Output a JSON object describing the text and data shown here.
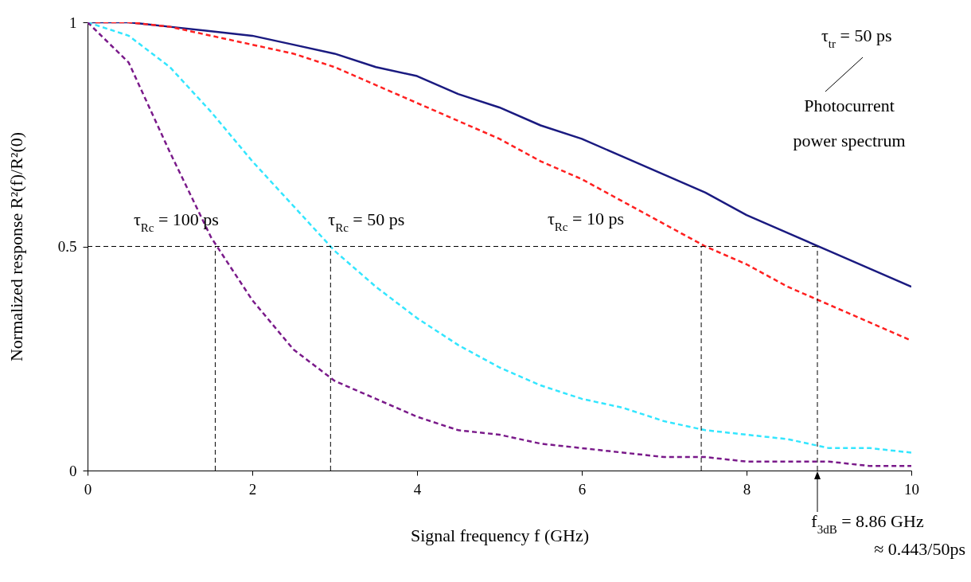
{
  "chart_data": {
    "type": "line",
    "xlabel": "Signal frequency f (GHz)",
    "ylabel": "Normalized response R²(f)/R²(0)",
    "x": [
      0,
      0.5,
      1,
      1.5,
      2,
      2.5,
      3,
      3.5,
      4,
      4.5,
      5,
      5.5,
      6,
      6.5,
      7,
      7.5,
      8,
      8.5,
      9,
      9.5,
      10
    ],
    "series": [
      {
        "color": "#1a1a80",
        "line_style": "solid",
        "values": [
          1,
          1,
          0.99,
          0.98,
          0.97,
          0.95,
          0.93,
          0.9,
          0.88,
          0.84,
          0.81,
          0.77,
          0.74,
          0.7,
          0.66,
          0.62,
          0.57,
          0.53,
          0.49,
          0.45,
          0.41
        ]
      },
      {
        "color": "#ff2020",
        "line_style": "dashed",
        "values": [
          1,
          1,
          0.99,
          0.97,
          0.95,
          0.93,
          0.9,
          0.86,
          0.82,
          0.78,
          0.74,
          0.69,
          0.65,
          0.6,
          0.55,
          0.5,
          0.46,
          0.41,
          0.37,
          0.33,
          0.29
        ]
      },
      {
        "color": "#33e6ff",
        "line_style": "dashed",
        "values": [
          1,
          0.97,
          0.9,
          0.8,
          0.69,
          0.59,
          0.49,
          0.41,
          0.34,
          0.28,
          0.23,
          0.19,
          0.16,
          0.14,
          0.11,
          0.09,
          0.08,
          0.07,
          0.05,
          0.05,
          0.04
        ]
      },
      {
        "color": "#7a1a8a",
        "line_style": "dashed",
        "values": [
          1,
          0.91,
          0.71,
          0.52,
          0.38,
          0.27,
          0.2,
          0.16,
          0.12,
          0.09,
          0.08,
          0.06,
          0.05,
          0.04,
          0.03,
          0.03,
          0.02,
          0.02,
          0.02,
          0.01,
          0.01
        ]
      }
    ],
    "xlim": [
      0,
      10
    ],
    "xticks": [
      0,
      2,
      4,
      6,
      8,
      10
    ],
    "ylim": [
      0,
      1
    ],
    "yticks": [
      0,
      0.5,
      1
    ],
    "ref_lines": [
      {
        "axis": "y",
        "value": 0.5,
        "color": "#000000",
        "line_style": "dashed"
      },
      {
        "axis": "x",
        "value": 1.55,
        "color": "#000000",
        "line_style": "dashed"
      },
      {
        "axis": "x",
        "value": 2.95,
        "color": "#000000",
        "line_style": "dashed"
      },
      {
        "axis": "x",
        "value": 7.45,
        "color": "#000000",
        "line_style": "dashed"
      },
      {
        "axis": "x",
        "value": 8.86,
        "color": "#000000",
        "line_style": "dashed"
      }
    ],
    "annotations": [
      "τ$_{tr}$ = 50 ps",
      "Photocurrent power spectrum",
      {
        "text": "τ$_{Rc}$ = 100 ps",
        "x": 1.55,
        "y": 0.5
      },
      {
        "text": "τ$_{Rc}$ = 50 ps",
        "x": 2.95,
        "y": 0.5
      },
      "τ$_{Rc}$ = 10 ps",
      {
        "text": "f$_{3dB}$ = 8.86 GHz",
        "x": 8.86,
        "y": 0
      },
      "≈ 0.443/50ps"
    ]
  }
}
